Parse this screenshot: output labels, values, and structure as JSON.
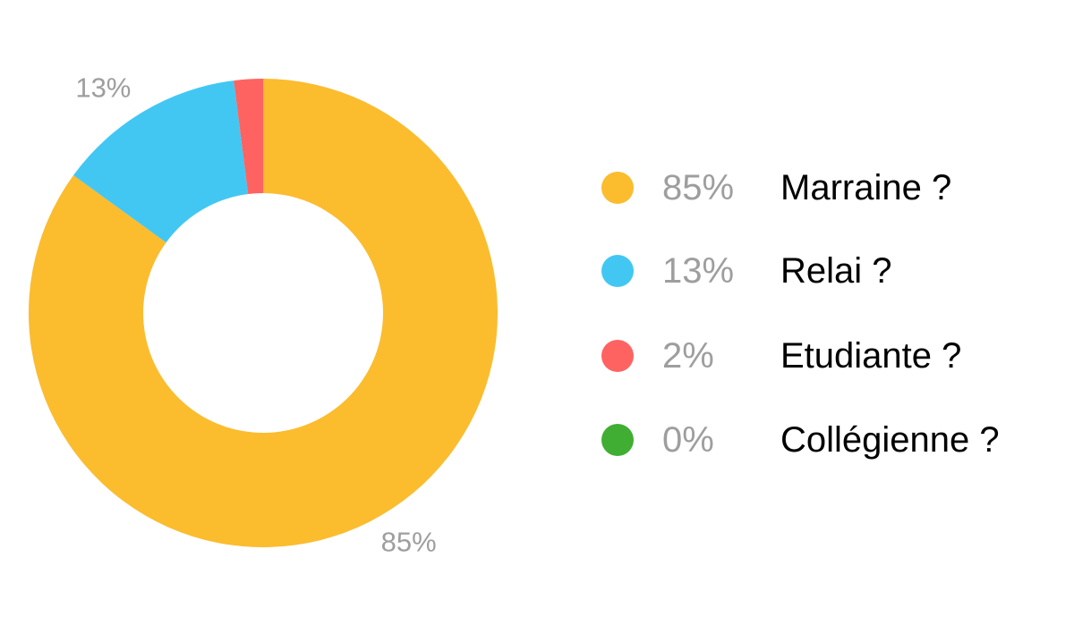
{
  "chart_data": {
    "type": "pie",
    "donut": true,
    "slices": [
      {
        "label": "Marraine ?",
        "value": 85,
        "display": "85%",
        "slice_label": "85%",
        "color": "#FBBC2E"
      },
      {
        "label": "Relai ?",
        "value": 13,
        "display": "13%",
        "slice_label": "13%",
        "color": "#42C7F3"
      },
      {
        "label": "Etudiante ?",
        "value": 2,
        "display": "2%",
        "slice_label": "",
        "color": "#FF6361"
      },
      {
        "label": "Collégienne ?",
        "value": 0,
        "display": "0%",
        "slice_label": "",
        "color": "#40AE33"
      }
    ],
    "legend_position": "right"
  }
}
